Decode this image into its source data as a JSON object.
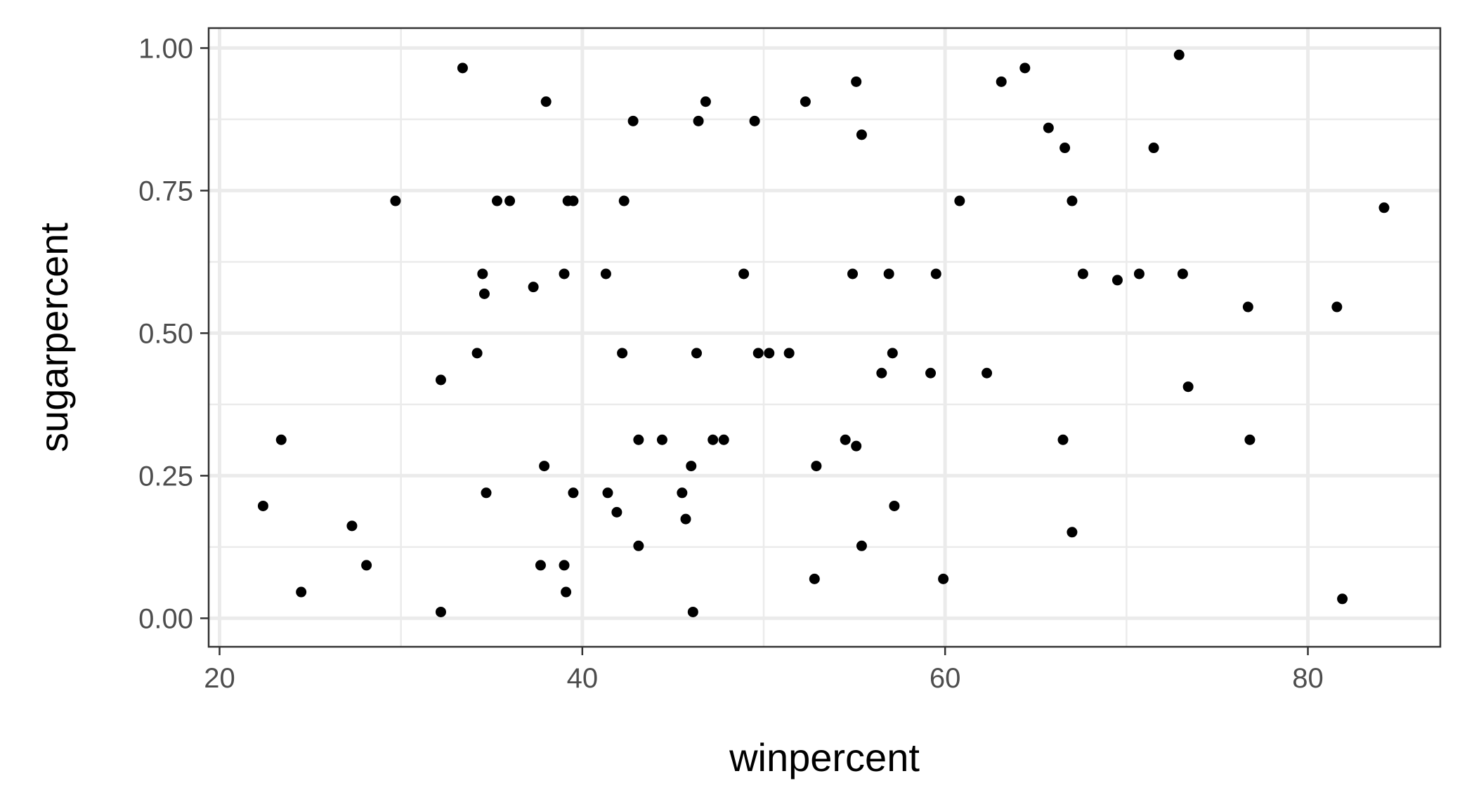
{
  "chart_data": {
    "type": "scatter",
    "title": "",
    "xlabel": "winpercent",
    "ylabel": "sugarpercent",
    "xlim": [
      19.4,
      87.3
    ],
    "ylim": [
      -0.05,
      1.035
    ],
    "x_ticks": [
      20,
      40,
      60,
      80
    ],
    "x_tick_labels": [
      "20",
      "40",
      "60",
      "80"
    ],
    "y_ticks": [
      0.0,
      0.25,
      0.5,
      0.75,
      1.0
    ],
    "y_tick_labels": [
      "0.00",
      "0.25",
      "0.50",
      "0.75",
      "1.00"
    ],
    "grid": true,
    "legend": "none",
    "point_color": "#000000",
    "points": [
      {
        "x": 22.4,
        "y": 0.197
      },
      {
        "x": 23.4,
        "y": 0.313
      },
      {
        "x": 24.5,
        "y": 0.046
      },
      {
        "x": 27.3,
        "y": 0.162
      },
      {
        "x": 28.1,
        "y": 0.093
      },
      {
        "x": 29.7,
        "y": 0.732
      },
      {
        "x": 32.2,
        "y": 0.418
      },
      {
        "x": 32.2,
        "y": 0.011
      },
      {
        "x": 33.4,
        "y": 0.965
      },
      {
        "x": 34.2,
        "y": 0.465
      },
      {
        "x": 34.5,
        "y": 0.604
      },
      {
        "x": 34.6,
        "y": 0.569
      },
      {
        "x": 34.7,
        "y": 0.22
      },
      {
        "x": 35.3,
        "y": 0.732
      },
      {
        "x": 36.0,
        "y": 0.732
      },
      {
        "x": 37.3,
        "y": 0.581
      },
      {
        "x": 37.7,
        "y": 0.093
      },
      {
        "x": 37.9,
        "y": 0.267
      },
      {
        "x": 38.0,
        "y": 0.906
      },
      {
        "x": 39.0,
        "y": 0.604
      },
      {
        "x": 39.0,
        "y": 0.093
      },
      {
        "x": 39.1,
        "y": 0.046
      },
      {
        "x": 39.2,
        "y": 0.732
      },
      {
        "x": 39.5,
        "y": 0.732
      },
      {
        "x": 39.5,
        "y": 0.22
      },
      {
        "x": 41.3,
        "y": 0.604
      },
      {
        "x": 41.4,
        "y": 0.22
      },
      {
        "x": 41.9,
        "y": 0.186
      },
      {
        "x": 42.2,
        "y": 0.465
      },
      {
        "x": 42.3,
        "y": 0.732
      },
      {
        "x": 42.8,
        "y": 0.872
      },
      {
        "x": 43.1,
        "y": 0.313
      },
      {
        "x": 43.1,
        "y": 0.127
      },
      {
        "x": 44.4,
        "y": 0.313
      },
      {
        "x": 45.5,
        "y": 0.22
      },
      {
        "x": 45.7,
        "y": 0.174
      },
      {
        "x": 46.0,
        "y": 0.267
      },
      {
        "x": 46.1,
        "y": 0.011
      },
      {
        "x": 46.3,
        "y": 0.465
      },
      {
        "x": 46.4,
        "y": 0.872
      },
      {
        "x": 46.8,
        "y": 0.906
      },
      {
        "x": 47.2,
        "y": 0.313
      },
      {
        "x": 47.8,
        "y": 0.313
      },
      {
        "x": 48.9,
        "y": 0.604
      },
      {
        "x": 49.5,
        "y": 0.872
      },
      {
        "x": 49.7,
        "y": 0.465
      },
      {
        "x": 50.3,
        "y": 0.465
      },
      {
        "x": 51.4,
        "y": 0.465
      },
      {
        "x": 52.3,
        "y": 0.906
      },
      {
        "x": 52.8,
        "y": 0.069
      },
      {
        "x": 52.9,
        "y": 0.267
      },
      {
        "x": 54.5,
        "y": 0.313
      },
      {
        "x": 54.9,
        "y": 0.604
      },
      {
        "x": 55.1,
        "y": 0.302
      },
      {
        "x": 55.1,
        "y": 0.941
      },
      {
        "x": 55.4,
        "y": 0.848
      },
      {
        "x": 55.4,
        "y": 0.127
      },
      {
        "x": 56.5,
        "y": 0.43
      },
      {
        "x": 56.9,
        "y": 0.604
      },
      {
        "x": 57.1,
        "y": 0.465
      },
      {
        "x": 57.2,
        "y": 0.197
      },
      {
        "x": 59.2,
        "y": 0.43
      },
      {
        "x": 59.5,
        "y": 0.604
      },
      {
        "x": 59.9,
        "y": 0.069
      },
      {
        "x": 60.8,
        "y": 0.732
      },
      {
        "x": 62.3,
        "y": 0.43
      },
      {
        "x": 63.1,
        "y": 0.941
      },
      {
        "x": 64.4,
        "y": 0.965
      },
      {
        "x": 65.7,
        "y": 0.86
      },
      {
        "x": 66.5,
        "y": 0.313
      },
      {
        "x": 66.6,
        "y": 0.825
      },
      {
        "x": 67.0,
        "y": 0.732
      },
      {
        "x": 67.0,
        "y": 0.151
      },
      {
        "x": 67.6,
        "y": 0.604
      },
      {
        "x": 69.5,
        "y": 0.593
      },
      {
        "x": 70.7,
        "y": 0.604
      },
      {
        "x": 71.5,
        "y": 0.825
      },
      {
        "x": 72.9,
        "y": 0.988
      },
      {
        "x": 73.1,
        "y": 0.604
      },
      {
        "x": 73.4,
        "y": 0.406
      },
      {
        "x": 76.7,
        "y": 0.546
      },
      {
        "x": 76.8,
        "y": 0.313
      },
      {
        "x": 81.6,
        "y": 0.546
      },
      {
        "x": 81.9,
        "y": 0.034
      },
      {
        "x": 84.2,
        "y": 0.72
      }
    ]
  }
}
